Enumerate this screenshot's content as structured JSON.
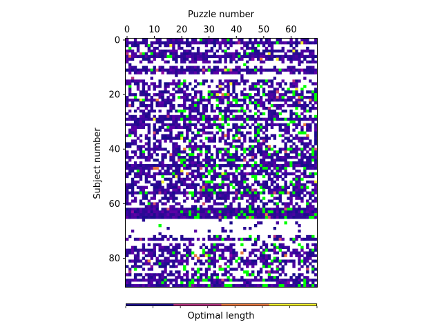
{
  "chart_data": {
    "type": "heatmap",
    "xlabel": "Puzzle number",
    "ylabel": "Subject number",
    "x_ticks": [
      0,
      10,
      20,
      30,
      40,
      50,
      60
    ],
    "y_ticks": [
      0,
      20,
      40,
      60,
      80
    ],
    "xlim": [
      0,
      70
    ],
    "ylim": [
      0,
      91
    ],
    "x_axis_position": "top",
    "colormap": "plasma",
    "missing_color": "#ffffff",
    "highlight_color": "#00ff00",
    "colorbar": {
      "label": "Optimal length",
      "placement": "bottom",
      "colors": [
        "#1a0a8a",
        "#b2307e",
        "#e8783e",
        "#f3f02a"
      ]
    }
  }
}
